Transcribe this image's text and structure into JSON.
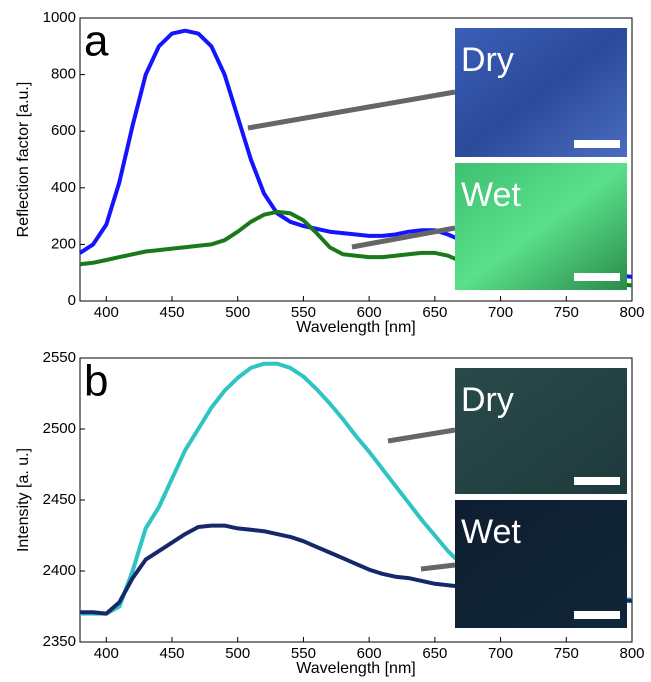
{
  "chart_data": [
    {
      "type": "line",
      "panel": "a",
      "x_label": "Wavelength [nm]",
      "y_label": "Reflection factor [a.u.]",
      "x": [
        380,
        390,
        400,
        410,
        420,
        430,
        440,
        450,
        460,
        470,
        480,
        490,
        500,
        510,
        520,
        530,
        540,
        550,
        560,
        570,
        580,
        590,
        600,
        610,
        620,
        630,
        640,
        650,
        660,
        670,
        680,
        690,
        700,
        710,
        720,
        730,
        740,
        750,
        760,
        770,
        780,
        790,
        800
      ],
      "series": [
        {
          "color": "#1414ff",
          "values": [
            170,
            200,
            270,
            420,
            620,
            800,
            900,
            945,
            955,
            945,
            900,
            800,
            650,
            500,
            380,
            310,
            280,
            265,
            255,
            245,
            240,
            235,
            230,
            230,
            235,
            245,
            250,
            250,
            235,
            215,
            195,
            180,
            165,
            150,
            140,
            130,
            120,
            110,
            105,
            100,
            95,
            90,
            85
          ]
        },
        {
          "color": "#1a7a1a",
          "values": [
            130,
            135,
            145,
            155,
            165,
            175,
            180,
            185,
            190,
            195,
            200,
            215,
            245,
            280,
            305,
            315,
            310,
            285,
            240,
            190,
            165,
            160,
            155,
            155,
            160,
            165,
            170,
            170,
            160,
            140,
            125,
            115,
            105,
            95,
            90,
            85,
            80,
            75,
            70,
            65,
            62,
            58,
            55
          ]
        }
      ],
      "insets": [
        {
          "label": "Dry"
        },
        {
          "label": "Wet"
        }
      ],
      "xlim": [
        380,
        800
      ],
      "xticks": [
        400,
        450,
        500,
        550,
        600,
        650,
        700,
        750,
        800
      ],
      "ylim": [
        0,
        1000
      ],
      "yticks": [
        0,
        200,
        400,
        600,
        800,
        1000
      ]
    },
    {
      "type": "line",
      "panel": "b",
      "x_label": "Wavelength [nm]",
      "y_label": "Intensity [a. u.]",
      "x": [
        380,
        390,
        400,
        410,
        420,
        430,
        440,
        450,
        460,
        470,
        480,
        490,
        500,
        510,
        520,
        530,
        540,
        550,
        560,
        570,
        580,
        590,
        600,
        610,
        620,
        630,
        640,
        650,
        660,
        670,
        680,
        690,
        700,
        710,
        720,
        730,
        740,
        750,
        760,
        770,
        780,
        790,
        800
      ],
      "series": [
        {
          "color": "#2ec4c4",
          "values": [
            2370,
            2370,
            2370,
            2375,
            2400,
            2430,
            2445,
            2465,
            2485,
            2500,
            2515,
            2527,
            2536,
            2543,
            2546,
            2546,
            2543,
            2537,
            2528,
            2518,
            2507,
            2495,
            2484,
            2472,
            2460,
            2448,
            2436,
            2425,
            2414,
            2405,
            2398,
            2392,
            2387,
            2384,
            2382,
            2381,
            2380,
            2380,
            2380,
            2380,
            2380,
            2380,
            2380
          ]
        },
        {
          "color": "#16286a",
          "values": [
            2371,
            2371,
            2370,
            2378,
            2395,
            2408,
            2414,
            2420,
            2426,
            2431,
            2432,
            2432,
            2430,
            2429,
            2428,
            2426,
            2424,
            2421,
            2417,
            2413,
            2409,
            2405,
            2401,
            2398,
            2396,
            2395,
            2393,
            2391,
            2390,
            2389,
            2388,
            2387,
            2386,
            2385,
            2384,
            2383,
            2382,
            2381,
            2381,
            2380,
            2380,
            2379,
            2379
          ]
        }
      ],
      "insets": [
        {
          "label": "Dry"
        },
        {
          "label": "Wet"
        }
      ],
      "xlim": [
        380,
        800
      ],
      "xticks": [
        400,
        450,
        500,
        550,
        600,
        650,
        700,
        750,
        800
      ],
      "ylim": [
        2350,
        2550
      ],
      "yticks": [
        2350,
        2400,
        2450,
        2500,
        2550
      ]
    }
  ]
}
